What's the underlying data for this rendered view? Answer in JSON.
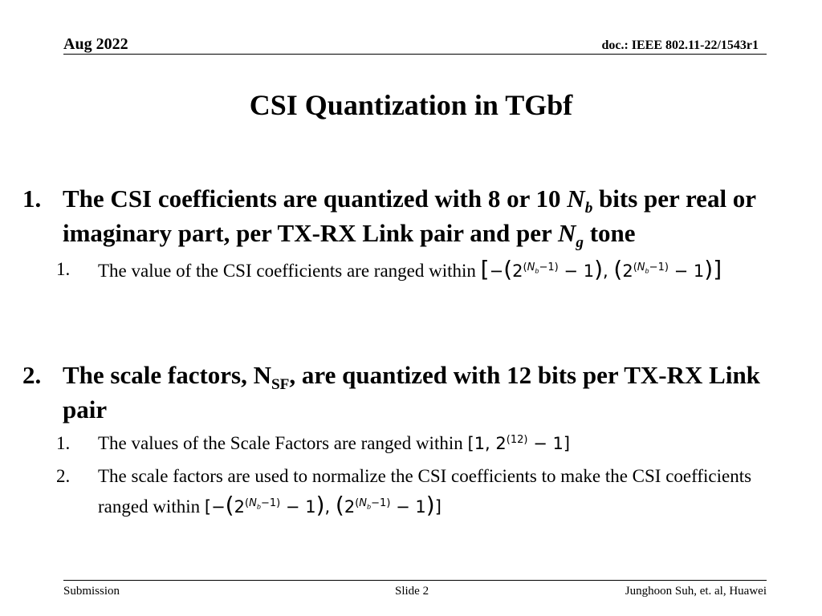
{
  "header": {
    "date": "Aug 2022",
    "doc": "doc.: IEEE 802.11-22/1543r1"
  },
  "title": "CSI Quantization in TGbf",
  "items": [
    {
      "number": "1.",
      "text_a": "The CSI coefficients are quantized with 8 or 10 ",
      "var_a": "N",
      "var_a_sub": "b",
      "text_b": " bits per real or imaginary part, per TX-RX Link pair and per ",
      "var_b": "N",
      "var_b_sub": "g",
      "text_c": " tone",
      "subitems": [
        {
          "number": "1.",
          "text": "The value of the CSI coefficients are ranged within "
        }
      ]
    },
    {
      "number": "2.",
      "text_a": "The scale factors, N",
      "var_sub": "SF",
      "text_b": ", are quantized with 12  bits per TX-RX Link pair",
      "subitems": [
        {
          "number": "1.",
          "text": "The values of the Scale Factors are ranged within "
        },
        {
          "number": "2.",
          "text": "The scale factors are used to normalize the CSI coefficients to make the CSI coefficients ranged within "
        }
      ]
    }
  ],
  "math": {
    "minus": "−",
    "two": "2",
    "one": "1",
    "comma": ",",
    "nb_var": "N",
    "nb_sub": "b",
    "exp_minus_one": "−1",
    "twelve": "12",
    "one_comma": "1, "
  },
  "footer": {
    "left": "Submission",
    "center": "Slide 2",
    "right": "Junghoon Suh, et. al, Huawei"
  }
}
